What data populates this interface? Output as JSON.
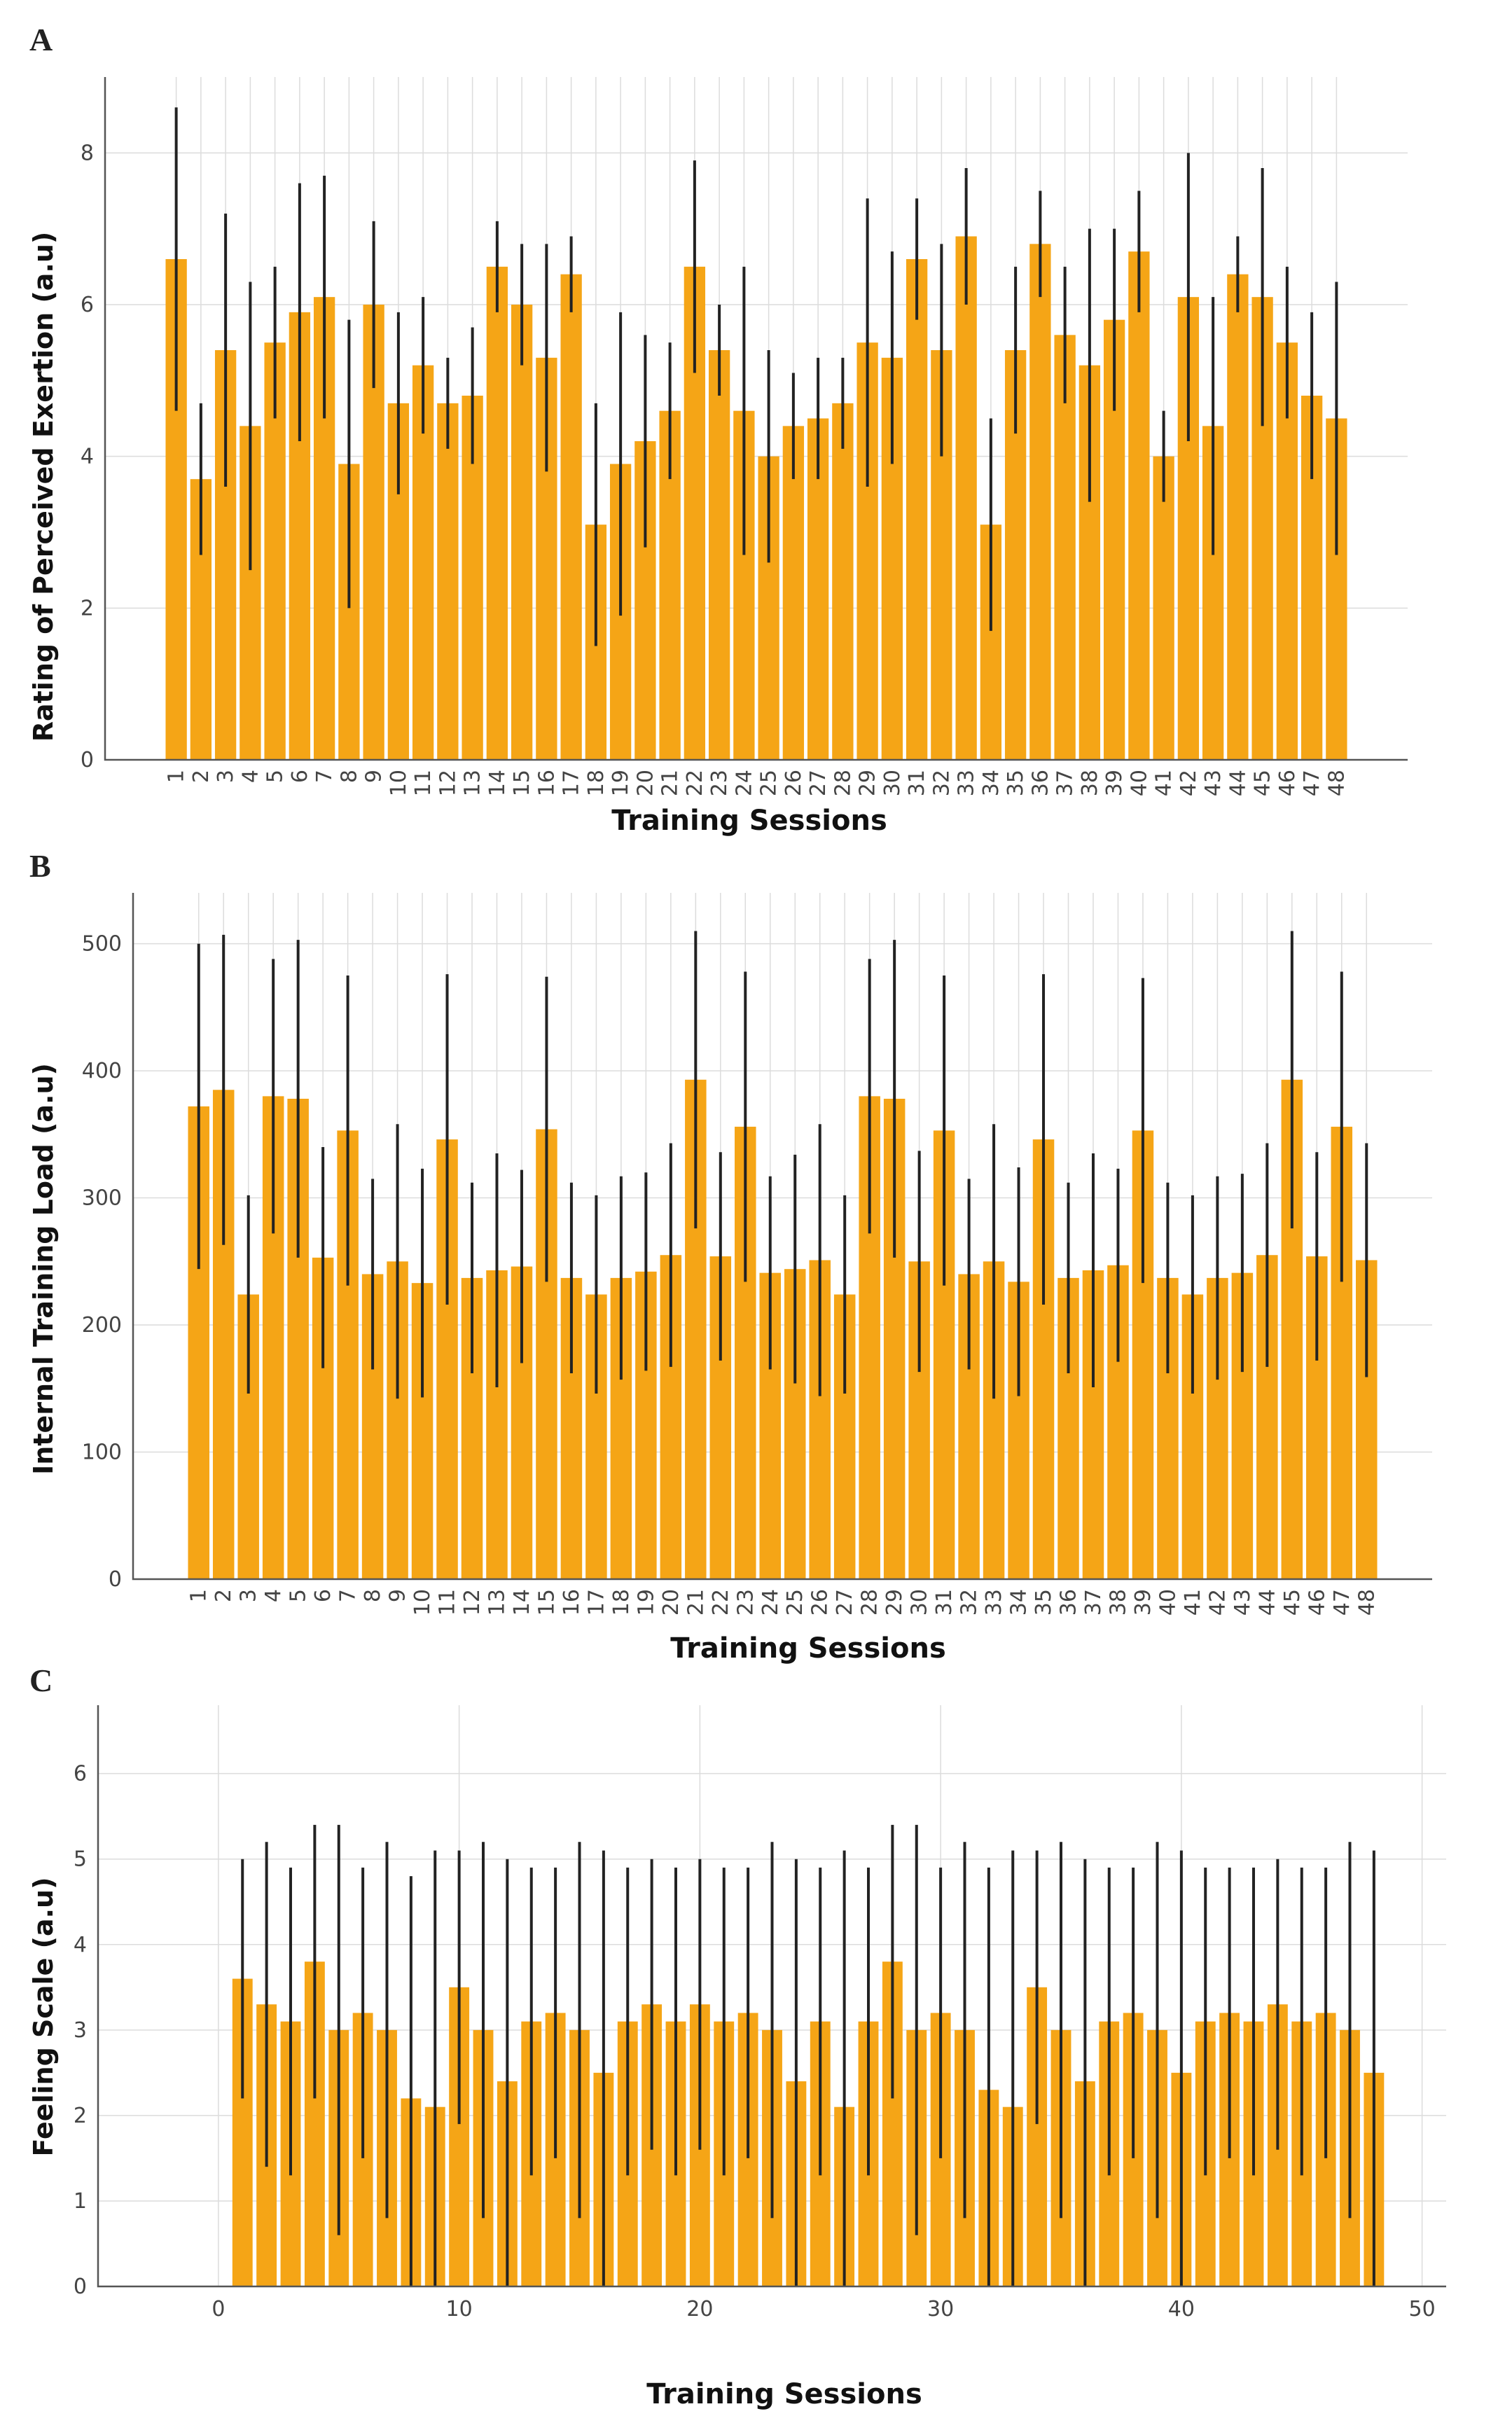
{
  "colors": {
    "bar": "#F5A516",
    "error_bar": "#222222",
    "grid": "#dcdcdc",
    "axis": "#555555"
  },
  "chart_data": [
    {
      "panel": "A",
      "type": "bar",
      "xlabel": "Training Sessions",
      "ylabel": "Rating of Perceived Exertion (a.u)",
      "ylim": [
        0,
        9
      ],
      "yticks": [
        0,
        2,
        4,
        6,
        8
      ],
      "categories": [
        "1",
        "2",
        "3",
        "4",
        "5",
        "6",
        "7",
        "8",
        "9",
        "10",
        "11",
        "12",
        "13",
        "14",
        "15",
        "16",
        "17",
        "18",
        "19",
        "20",
        "21",
        "22",
        "23",
        "24",
        "25",
        "26",
        "27",
        "28",
        "29",
        "30",
        "31",
        "32",
        "33",
        "34",
        "35",
        "36",
        "37",
        "38",
        "39",
        "40",
        "41",
        "42",
        "43",
        "44",
        "45",
        "46",
        "47",
        "48"
      ],
      "values": [
        6.6,
        3.7,
        5.4,
        4.4,
        5.5,
        5.9,
        6.1,
        3.9,
        6.0,
        4.7,
        5.2,
        4.7,
        4.8,
        6.5,
        6.0,
        5.3,
        6.4,
        3.1,
        3.9,
        4.2,
        4.6,
        6.5,
        5.4,
        4.6,
        4.0,
        4.4,
        4.5,
        4.7,
        5.5,
        5.3,
        6.6,
        5.4,
        6.9,
        3.1,
        5.4,
        6.8,
        5.6,
        5.2,
        5.8,
        6.7,
        4.0,
        6.1,
        4.4,
        6.4,
        6.1,
        5.5,
        4.8,
        4.5
      ],
      "errors": [
        2.0,
        1.0,
        1.8,
        1.9,
        1.0,
        1.7,
        1.6,
        1.9,
        1.1,
        1.2,
        0.9,
        0.6,
        0.9,
        0.6,
        0.8,
        1.5,
        0.5,
        1.6,
        2.0,
        1.4,
        0.9,
        1.4,
        0.6,
        1.9,
        1.4,
        0.7,
        0.8,
        0.6,
        1.9,
        1.4,
        0.8,
        1.4,
        0.9,
        1.4,
        1.1,
        0.7,
        0.9,
        1.8,
        1.2,
        0.8,
        0.6,
        1.9,
        1.7,
        0.5,
        1.7,
        1.0,
        1.1,
        1.8
      ]
    },
    {
      "panel": "B",
      "type": "bar",
      "xlabel": "Training Sessions",
      "ylabel": "Internal Training Load (a.u)",
      "ylim": [
        0,
        540
      ],
      "yticks": [
        0,
        100,
        200,
        300,
        400,
        500
      ],
      "categories": [
        "1",
        "2",
        "3",
        "4",
        "5",
        "6",
        "7",
        "8",
        "9",
        "10",
        "11",
        "12",
        "13",
        "14",
        "15",
        "16",
        "17",
        "18",
        "19",
        "20",
        "21",
        "22",
        "23",
        "24",
        "25",
        "26",
        "27",
        "28",
        "29",
        "30",
        "31",
        "32",
        "33",
        "34",
        "35",
        "36",
        "37",
        "38",
        "39",
        "40",
        "41",
        "42",
        "43",
        "44",
        "45",
        "46",
        "47",
        "48"
      ],
      "values": [
        372,
        385,
        224,
        380,
        378,
        253,
        353,
        240,
        250,
        233,
        346,
        237,
        243,
        246,
        354,
        237,
        224,
        237,
        242,
        255,
        393,
        254,
        356,
        241,
        244,
        251,
        224,
        380,
        378,
        250,
        353,
        240,
        250,
        234,
        346,
        237,
        243,
        247,
        353,
        237,
        224,
        237,
        241,
        255,
        393,
        254,
        356,
        251
      ],
      "errors": [
        128,
        122,
        78,
        108,
        125,
        87,
        122,
        75,
        108,
        90,
        130,
        75,
        92,
        76,
        120,
        75,
        78,
        80,
        78,
        88,
        117,
        82,
        122,
        76,
        90,
        107,
        78,
        108,
        125,
        87,
        122,
        75,
        108,
        90,
        130,
        75,
        92,
        76,
        120,
        75,
        78,
        80,
        78,
        88,
        117,
        82,
        122,
        92
      ]
    },
    {
      "panel": "C",
      "type": "bar",
      "xlabel": "Training Sessions",
      "ylabel": "Feeling Scale (a.u)",
      "ylim": [
        0,
        6.8
      ],
      "xlim": [
        -5,
        51
      ],
      "yticks": [
        0,
        1,
        2,
        3,
        4,
        5,
        6
      ],
      "xticks": [
        0,
        10,
        20,
        30,
        40,
        50
      ],
      "x": [
        1,
        2,
        3,
        4,
        5,
        6,
        7,
        8,
        9,
        10,
        11,
        12,
        13,
        14,
        15,
        16,
        17,
        18,
        19,
        20,
        21,
        22,
        23,
        24,
        25,
        26,
        27,
        28,
        29,
        30,
        31,
        32,
        33,
        34,
        35,
        36,
        37,
        38,
        39,
        40,
        41,
        42,
        43,
        44,
        45,
        46,
        47,
        48
      ],
      "values": [
        3.6,
        3.3,
        3.1,
        3.8,
        3.0,
        3.2,
        3.0,
        2.2,
        2.1,
        3.5,
        3.0,
        2.4,
        3.1,
        3.2,
        3.0,
        2.5,
        3.1,
        3.3,
        3.1,
        3.3,
        3.1,
        3.2,
        3.0,
        2.4,
        3.1,
        2.1,
        3.1,
        3.8,
        3.0,
        3.2,
        3.0,
        2.3,
        2.1,
        3.5,
        3.0,
        2.4,
        3.1,
        3.2,
        3.0,
        2.5,
        3.1,
        3.2,
        3.1,
        3.3,
        3.1,
        3.2,
        3.0,
        2.5
      ],
      "errors": [
        1.4,
        1.9,
        1.8,
        1.6,
        2.4,
        1.7,
        2.2,
        2.6,
        3.0,
        1.6,
        2.2,
        2.6,
        1.8,
        1.7,
        2.2,
        2.6,
        1.8,
        1.7,
        1.8,
        1.7,
        1.8,
        1.7,
        2.2,
        2.6,
        1.8,
        3.0,
        1.8,
        1.6,
        2.4,
        1.7,
        2.2,
        2.6,
        3.0,
        1.6,
        2.2,
        2.6,
        1.8,
        1.7,
        2.2,
        2.6,
        1.8,
        1.7,
        1.8,
        1.7,
        1.8,
        1.7,
        2.2,
        2.6
      ]
    }
  ]
}
